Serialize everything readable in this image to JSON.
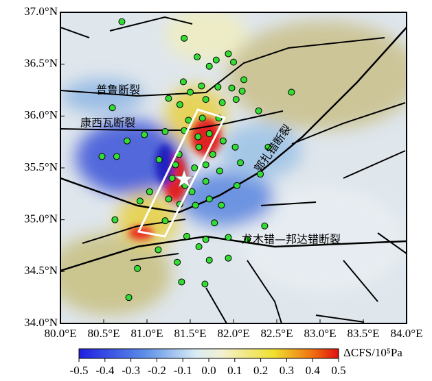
{
  "map": {
    "xlim": [
      80,
      84
    ],
    "xticks": [
      {
        "value": 80,
        "label": "80.0°E"
      },
      {
        "value": 80.5,
        "label": "80.5°E"
      },
      {
        "value": 81,
        "label": "81.0°E"
      },
      {
        "value": 81.5,
        "label": "81.5°E"
      },
      {
        "value": 82,
        "label": "82.0°E"
      },
      {
        "value": 82.5,
        "label": "82.5°E"
      },
      {
        "value": 83,
        "label": "83.0°E"
      },
      {
        "value": 83.5,
        "label": "83.5°E"
      },
      {
        "value": 84,
        "label": "84.0°E"
      }
    ],
    "ylim": [
      34,
      37
    ],
    "yticks": [
      {
        "value": 34,
        "label": "34.0°N"
      },
      {
        "value": 34.5,
        "label": "34.5°N"
      },
      {
        "value": 35,
        "label": "35.0°N"
      },
      {
        "value": 35.5,
        "label": "35.5°N"
      },
      {
        "value": 36,
        "label": "36.0°N"
      },
      {
        "value": 36.5,
        "label": "36.5°N"
      },
      {
        "value": 37,
        "label": "37.0°N"
      }
    ],
    "fault_labels": [
      "普鲁断裂",
      "康西瓦断裂",
      "郭扎错断裂",
      "龙木错—邦达错断裂"
    ],
    "colorbar": {
      "label": "ΔCFS/10⁵Pa",
      "lim": [
        -0.5,
        0.5
      ],
      "ticks": [
        -0.5,
        -0.4,
        -0.3,
        -0.2,
        -0.1,
        {
          "value": 0,
          "label": "0.0"
        },
        0.1,
        0.2,
        0.3,
        0.4,
        0.5
      ]
    },
    "epicenter": {
      "lon": 81.43,
      "lat": 35.39
    },
    "aftershocks": {
      "lon": [
        80.71,
        81.43,
        81.58,
        82.0,
        81.94,
        81.8,
        81.72,
        81.42,
        81.63,
        81.82,
        81.98,
        82.12,
        82.1,
        81.5,
        82.67,
        81.25,
        81.38,
        81.68,
        81.87,
        82.03,
        80.6,
        82.29,
        81.48,
        81.64,
        81.83,
        81.21,
        81.43,
        81.59,
        81.72,
        81.88,
        82.02,
        80.97,
        80.77,
        81.14,
        81.33,
        81.55,
        81.68,
        81.84,
        82.08,
        82.31,
        82.4,
        80.48,
        80.65,
        80.92,
        81.03,
        81.25,
        81.38,
        81.56,
        81.72,
        81.86,
        81.78,
        82.04,
        80.63,
        81.21,
        81.46,
        81.68,
        81.94,
        82.16,
        82.36,
        80.89,
        81.35,
        81.72,
        81.94,
        81.4,
        81.67,
        80.79,
        81.13,
        81.6,
        81.29,
        81.44,
        81.6,
        81.76,
        81.68,
        81.52,
        81.37
      ],
      "lat": [
        36.91,
        36.75,
        36.57,
        36.52,
        36.6,
        36.54,
        36.48,
        36.33,
        36.29,
        36.28,
        36.27,
        36.35,
        36.24,
        36.23,
        36.23,
        36.17,
        36.11,
        36.16,
        36.13,
        36.16,
        36.08,
        36.05,
        35.96,
        35.98,
        35.98,
        35.85,
        35.86,
        35.8,
        35.83,
        35.76,
        35.7,
        35.82,
        35.76,
        35.58,
        35.53,
        35.5,
        35.53,
        35.47,
        35.55,
        35.44,
        35.7,
        35.61,
        35.61,
        35.18,
        35.27,
        35.2,
        35.15,
        35.14,
        35.2,
        35.14,
        34.97,
        35.33,
        35.0,
        34.99,
        34.84,
        34.81,
        34.83,
        34.81,
        34.94,
        34.53,
        34.59,
        34.61,
        34.63,
        34.4,
        34.38,
        34.25,
        34.71,
        34.74,
        35.4,
        35.33,
        35.7,
        35.63,
        35.37,
        35.27,
        35.63
      ]
    }
  }
}
